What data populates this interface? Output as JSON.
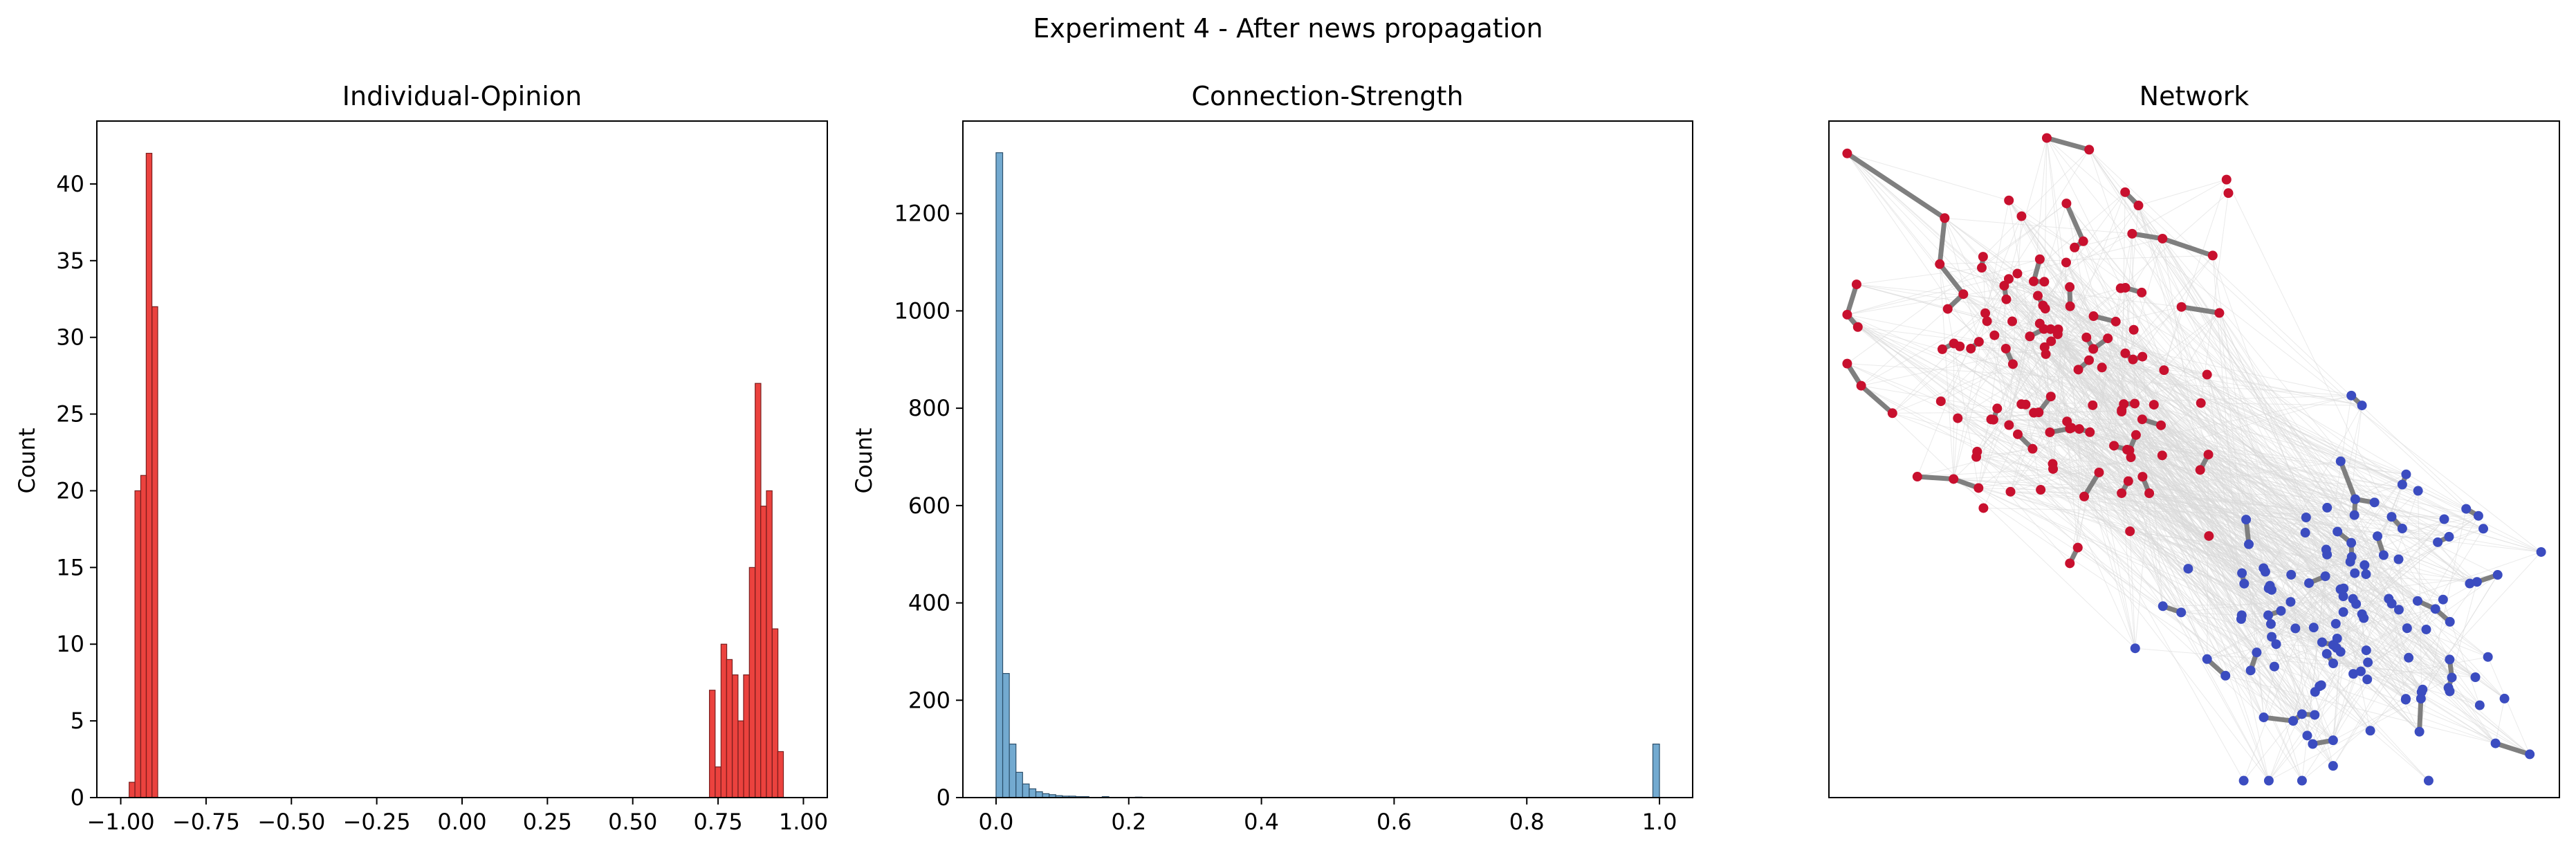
{
  "figure": {
    "title": "Experiment 4 - After news propagation"
  },
  "chart_data": [
    {
      "type": "bar",
      "title": "Individual-Opinion",
      "xlabel": "",
      "ylabel": "Count",
      "xlim": [
        -1.07,
        1.07
      ],
      "ylim": [
        0,
        44.1
      ],
      "bin_width": 0.0167,
      "color": "#e8211c",
      "edge_color": "#7a1f1f",
      "bins": [
        {
          "x": -0.967,
          "count": 1
        },
        {
          "x": -0.95,
          "count": 20
        },
        {
          "x": -0.933,
          "count": 21
        },
        {
          "x": -0.917,
          "count": 42
        },
        {
          "x": -0.9,
          "count": 32
        },
        {
          "x": 0.733,
          "count": 7
        },
        {
          "x": 0.75,
          "count": 2
        },
        {
          "x": 0.767,
          "count": 10
        },
        {
          "x": 0.783,
          "count": 9
        },
        {
          "x": 0.8,
          "count": 8
        },
        {
          "x": 0.817,
          "count": 5
        },
        {
          "x": 0.833,
          "count": 8
        },
        {
          "x": 0.85,
          "count": 15
        },
        {
          "x": 0.867,
          "count": 27
        },
        {
          "x": 0.883,
          "count": 19
        },
        {
          "x": 0.9,
          "count": 20
        },
        {
          "x": 0.917,
          "count": 11
        },
        {
          "x": 0.933,
          "count": 3
        }
      ],
      "xticks": [
        "−1.00",
        "−0.75",
        "−0.50",
        "−0.25",
        "0.00",
        "0.25",
        "0.50",
        "0.75",
        "1.00"
      ],
      "xtick_values": [
        -1.0,
        -0.75,
        -0.5,
        -0.25,
        0.0,
        0.25,
        0.5,
        0.75,
        1.0
      ],
      "yticks": [
        "0",
        "5",
        "10",
        "15",
        "20",
        "25",
        "30",
        "35",
        "40"
      ],
      "ytick_values": [
        0,
        5,
        10,
        15,
        20,
        25,
        30,
        35,
        40
      ]
    },
    {
      "type": "bar",
      "title": "Connection-Strength",
      "xlabel": "",
      "ylabel": "Count",
      "xlim": [
        -0.05,
        1.05
      ],
      "ylim": [
        0,
        1390
      ],
      "bin_width": 0.01,
      "color": "#5b9bc8",
      "edge_color": "#2c4f6b",
      "bins": [
        {
          "x": 0.005,
          "count": 1325
        },
        {
          "x": 0.015,
          "count": 255
        },
        {
          "x": 0.025,
          "count": 110
        },
        {
          "x": 0.035,
          "count": 52
        },
        {
          "x": 0.045,
          "count": 28
        },
        {
          "x": 0.055,
          "count": 18
        },
        {
          "x": 0.065,
          "count": 12
        },
        {
          "x": 0.075,
          "count": 8
        },
        {
          "x": 0.085,
          "count": 6
        },
        {
          "x": 0.095,
          "count": 4
        },
        {
          "x": 0.105,
          "count": 3
        },
        {
          "x": 0.115,
          "count": 3
        },
        {
          "x": 0.125,
          "count": 2
        },
        {
          "x": 0.135,
          "count": 2
        },
        {
          "x": 0.165,
          "count": 2
        },
        {
          "x": 0.215,
          "count": 1
        },
        {
          "x": 0.995,
          "count": 110
        }
      ],
      "xticks": [
        "0.0",
        "0.2",
        "0.4",
        "0.6",
        "0.8",
        "1.0"
      ],
      "xtick_values": [
        0.0,
        0.2,
        0.4,
        0.6,
        0.8,
        1.0
      ],
      "yticks": [
        "0",
        "200",
        "400",
        "600",
        "800",
        "1000",
        "1200"
      ],
      "ytick_values": [
        0,
        200,
        400,
        600,
        800,
        1000,
        1200
      ]
    },
    {
      "type": "scatter",
      "title": "Network",
      "xlim": [
        0,
        1
      ],
      "ylim": [
        0,
        1
      ],
      "colors": {
        "red_group": "#c8102e",
        "blue_group": "#3b4cc0",
        "strong_edge": "#7f7f7f",
        "weak_edge": "#d9d9d9"
      },
      "groups": [
        {
          "name": "red",
          "count": 135,
          "center": [
            0.3,
            0.66
          ],
          "spread": [
            0.12,
            0.15
          ]
        },
        {
          "name": "blue",
          "count": 130,
          "center": [
            0.73,
            0.27
          ],
          "spread": [
            0.11,
            0.12
          ]
        }
      ]
    }
  ]
}
